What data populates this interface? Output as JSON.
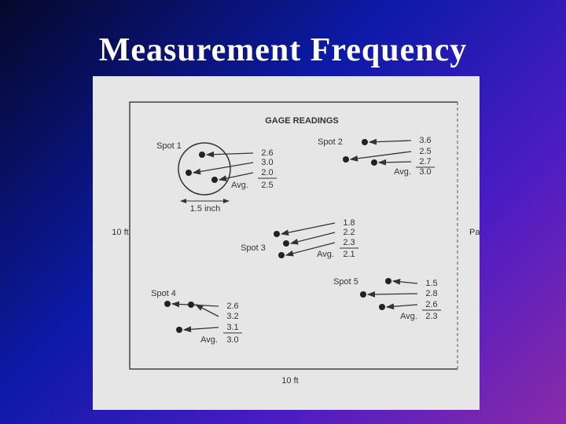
{
  "title": "Measurement Frequency",
  "diagram": {
    "heading": "GAGE READINGS",
    "side_label": "10 ft",
    "bottom_label": "10 ft",
    "right_label": "Pa",
    "circle_label": "1.5 inch",
    "spots": [
      {
        "label": "Spot 1",
        "readings": [
          "2.6",
          "3.0",
          "2.0"
        ],
        "avg_label": "Avg.",
        "avg": "2.5"
      },
      {
        "label": "Spot 2",
        "readings": [
          "3.6",
          "2.5",
          "2.7"
        ],
        "avg_label": "Avg.",
        "avg": "3.0"
      },
      {
        "label": "Spot 3",
        "readings": [
          "1.8",
          "2.2",
          "2.3"
        ],
        "avg_label": "Avg.",
        "avg": "2.1"
      },
      {
        "label": "Spot 4",
        "readings": [
          "2.6",
          "3.2",
          "3.1"
        ],
        "avg_label": "Avg.",
        "avg": "3.0"
      },
      {
        "label": "Spot 5",
        "readings": [
          "1.5",
          "2.8",
          "2.6"
        ],
        "avg_label": "Avg.",
        "avg": "2.3"
      }
    ]
  }
}
